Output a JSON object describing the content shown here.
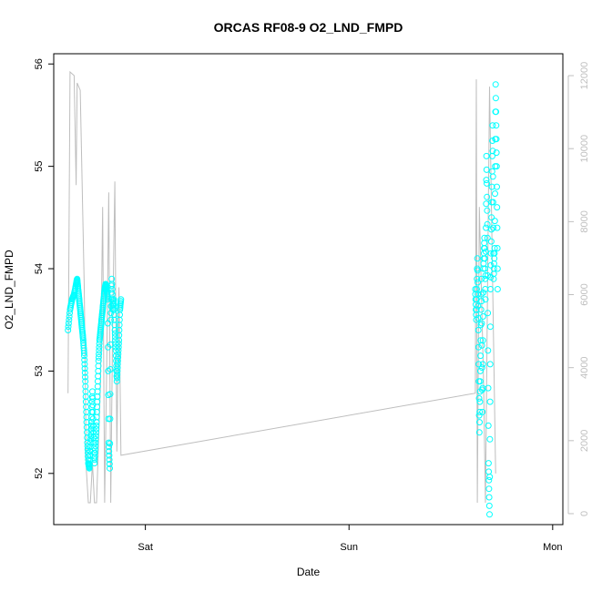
{
  "chart_data": {
    "type": "line",
    "title": "ORCAS RF08-9 O2_LND_FMPD",
    "xlabel": "Date",
    "ylabel": "O2_LND_FMPD",
    "x_ticks": [
      "Sat",
      "Sun",
      "Mon"
    ],
    "y_ticks": [
      "52",
      "53",
      "54",
      "55",
      "56"
    ],
    "y2_ticks": [
      "0",
      "2000",
      "4000",
      "6000",
      "8000",
      "10000",
      "12000"
    ],
    "ylim": [
      51.5,
      56.1
    ],
    "y2lim": [
      -300,
      12600
    ],
    "xlim_days": [
      -0.45,
      2.05
    ],
    "colors": {
      "primary": "#00ffff",
      "secondary": "#bebebe",
      "emphasis": "#00ffc8"
    },
    "series": [
      {
        "axis": "right",
        "style": "line",
        "color": "#bebebe",
        "points": [
          [
            -0.38,
            3300
          ],
          [
            -0.37,
            12100
          ],
          [
            -0.35,
            12000
          ],
          [
            -0.34,
            9000
          ],
          [
            -0.335,
            11800
          ],
          [
            -0.32,
            11600
          ],
          [
            -0.3,
            6200
          ],
          [
            -0.29,
            1200
          ],
          [
            -0.28,
            300
          ],
          [
            -0.27,
            300
          ],
          [
            -0.26,
            1400
          ],
          [
            -0.25,
            300
          ],
          [
            -0.24,
            300
          ],
          [
            -0.22,
            3600
          ],
          [
            -0.21,
            8400
          ],
          [
            -0.2,
            300
          ],
          [
            -0.19,
            4000
          ],
          [
            -0.18,
            8800
          ],
          [
            -0.17,
            300
          ],
          [
            -0.16,
            5400
          ],
          [
            -0.15,
            9100
          ],
          [
            -0.14,
            1700
          ],
          [
            -0.13,
            6200
          ],
          [
            -0.12,
            1600
          ],
          [
            1.62,
            3300
          ],
          [
            1.625,
            11900
          ],
          [
            1.63,
            300
          ],
          [
            1.64,
            8400
          ],
          [
            1.66,
            3800
          ],
          [
            1.67,
            300
          ],
          [
            1.69,
            11700
          ],
          [
            1.72,
            1100
          ]
        ]
      },
      {
        "axis": "left",
        "style": "circles",
        "color": "#00ffff",
        "segments": [
          {
            "points": [
              [
                -0.38,
                53.4
              ],
              [
                -0.37,
                53.6
              ],
              [
                -0.36,
                53.7
              ],
              [
                -0.35,
                53.75
              ],
              [
                -0.34,
                53.85
              ],
              [
                -0.335,
                53.9
              ],
              [
                -0.33,
                53.8
              ],
              [
                -0.325,
                53.7
              ],
              [
                -0.32,
                53.6
              ],
              [
                -0.315,
                53.5
              ],
              [
                -0.31,
                53.4
              ],
              [
                -0.305,
                53.3
              ],
              [
                -0.3,
                53.15
              ],
              [
                -0.295,
                52.9
              ],
              [
                -0.29,
                52.6
              ],
              [
                -0.285,
                52.3
              ],
              [
                -0.28,
                52.1
              ],
              [
                -0.275,
                52.05
              ],
              [
                -0.27,
                52.3
              ],
              [
                -0.265,
                52.5
              ],
              [
                -0.26,
                52.8
              ],
              [
                -0.255,
                52.4
              ],
              [
                -0.25,
                52.1
              ],
              [
                -0.245,
                52.3
              ],
              [
                -0.24,
                52.5
              ],
              [
                -0.235,
                52.8
              ],
              [
                -0.23,
                53.1
              ],
              [
                -0.225,
                53.3
              ],
              [
                -0.22,
                53.4
              ],
              [
                -0.215,
                53.5
              ],
              [
                -0.21,
                53.6
              ],
              [
                -0.205,
                53.7
              ],
              [
                -0.2,
                53.8
              ],
              [
                -0.195,
                53.85
              ],
              [
                -0.19,
                53.8
              ],
              [
                -0.185,
                53.7
              ],
              [
                -0.18,
                52.3
              ],
              [
                -0.175,
                52.05
              ],
              [
                -0.17,
                53.5
              ],
              [
                -0.165,
                53.9
              ],
              [
                -0.16,
                53.6
              ],
              [
                -0.155,
                53.7
              ],
              [
                -0.15,
                53.4
              ],
              [
                -0.145,
                53.2
              ],
              [
                -0.14,
                52.9
              ],
              [
                -0.135,
                53.1
              ],
              [
                -0.13,
                53.3
              ],
              [
                -0.125,
                53.6
              ],
              [
                -0.12,
                53.7
              ]
            ]
          },
          {
            "points": [
              [
                1.62,
                53.8
              ],
              [
                1.625,
                53.5
              ],
              [
                1.63,
                54.1
              ],
              [
                1.635,
                53.4
              ],
              [
                1.64,
                52.4
              ],
              [
                1.645,
                53.0
              ],
              [
                1.65,
                53.9
              ],
              [
                1.655,
                52.6
              ],
              [
                1.66,
                54.0
              ],
              [
                1.665,
                54.3
              ],
              [
                1.67,
                53.7
              ],
              [
                1.675,
                55.1
              ],
              [
                1.68,
                54.3
              ],
              [
                1.685,
                52.1
              ],
              [
                1.69,
                51.6
              ],
              [
                1.695,
                53.8
              ],
              [
                1.7,
                54.5
              ],
              [
                1.705,
                55.4
              ],
              [
                1.71,
                53.9
              ],
              [
                1.715,
                54.2
              ],
              [
                1.72,
                55.8
              ],
              [
                1.725,
                55.0
              ],
              [
                1.73,
                53.8
              ]
            ]
          }
        ]
      }
    ]
  }
}
